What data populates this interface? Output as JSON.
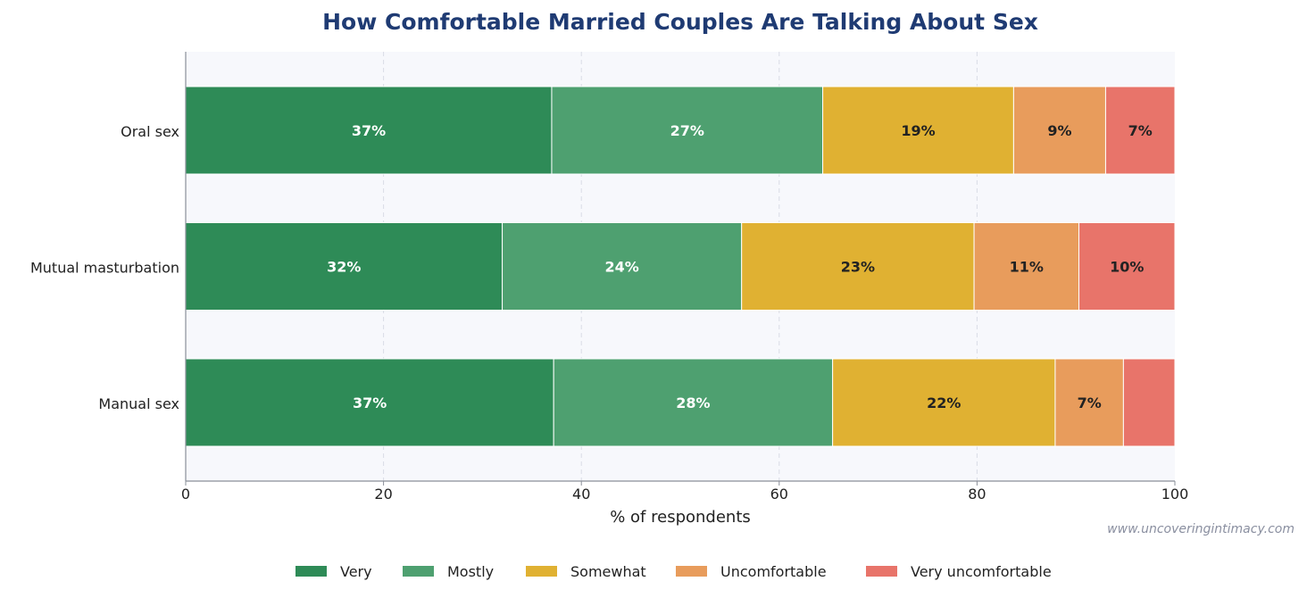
{
  "chart_data": {
    "type": "bar",
    "orientation": "horizontal",
    "stacked": true,
    "title": "How Comfortable Married Couples Are Talking About Sex",
    "xlabel": "% of respondents",
    "ylabel": "",
    "xlim": [
      0,
      100
    ],
    "xticks": [
      0,
      20,
      40,
      60,
      80,
      100
    ],
    "grid": true,
    "legend_position": "bottom",
    "categories": [
      "Oral sex",
      "Mutual masturbation",
      "Manual sex"
    ],
    "series": [
      {
        "name": "Very",
        "color": "#2e8b57",
        "label_color": "#ffffff",
        "values": [
          37,
          32,
          37.2
        ]
      },
      {
        "name": "Mostly",
        "color": "#4ea070",
        "label_color": "#ffffff",
        "values": [
          27.4,
          24.2,
          28.2
        ]
      },
      {
        "name": "Somewhat",
        "color": "#e0b132",
        "label_color": "#222222",
        "values": [
          19.3,
          23.5,
          22.5
        ]
      },
      {
        "name": "Uncomfortable",
        "color": "#e89c5c",
        "label_color": "#222222",
        "values": [
          9.3,
          10.6,
          6.9
        ]
      },
      {
        "name": "Very uncomfortable",
        "color": "#e8746a",
        "label_color": "#222222",
        "values": [
          7,
          9.8,
          5.3
        ]
      }
    ],
    "data_labels": [
      [
        "37%",
        "27%",
        "19%",
        "9%",
        "7%"
      ],
      [
        "32%",
        "24%",
        "23%",
        "11%",
        "10%"
      ],
      [
        "37%",
        "28%",
        "22%",
        "7%",
        ""
      ]
    ]
  },
  "watermark": "www.uncoveringintimacy.com"
}
